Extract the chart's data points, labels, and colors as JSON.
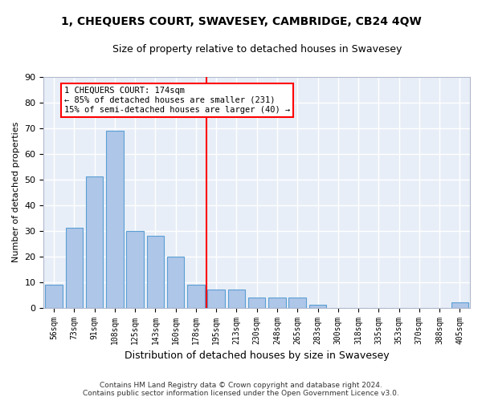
{
  "title": "1, CHEQUERS COURT, SWAVESEY, CAMBRIDGE, CB24 4QW",
  "subtitle": "Size of property relative to detached houses in Swavesey",
  "xlabel": "Distribution of detached houses by size in Swavesey",
  "ylabel": "Number of detached properties",
  "bar_color": "#aec6e8",
  "bar_edge_color": "#5a9fd4",
  "background_color": "#e8eef7",
  "grid_color": "#ffffff",
  "categories": [
    "56sqm",
    "73sqm",
    "91sqm",
    "108sqm",
    "125sqm",
    "143sqm",
    "160sqm",
    "178sqm",
    "195sqm",
    "213sqm",
    "230sqm",
    "248sqm",
    "265sqm",
    "283sqm",
    "300sqm",
    "318sqm",
    "335sqm",
    "353sqm",
    "370sqm",
    "388sqm",
    "405sqm"
  ],
  "values": [
    9,
    31,
    51,
    69,
    30,
    28,
    20,
    9,
    7,
    7,
    4,
    4,
    4,
    1,
    0,
    0,
    0,
    0,
    0,
    0,
    2
  ],
  "property_line_bin_index": 7,
  "annotation_text": "1 CHEQUERS COURT: 174sqm\n← 85% of detached houses are smaller (231)\n15% of semi-detached houses are larger (40) →",
  "ylim": [
    0,
    90
  ],
  "yticks": [
    0,
    10,
    20,
    30,
    40,
    50,
    60,
    70,
    80,
    90
  ],
  "footnote": "Contains HM Land Registry data © Crown copyright and database right 2024.\nContains public sector information licensed under the Open Government Licence v3.0.",
  "fig_width": 6.0,
  "fig_height": 5.0,
  "dpi": 100
}
